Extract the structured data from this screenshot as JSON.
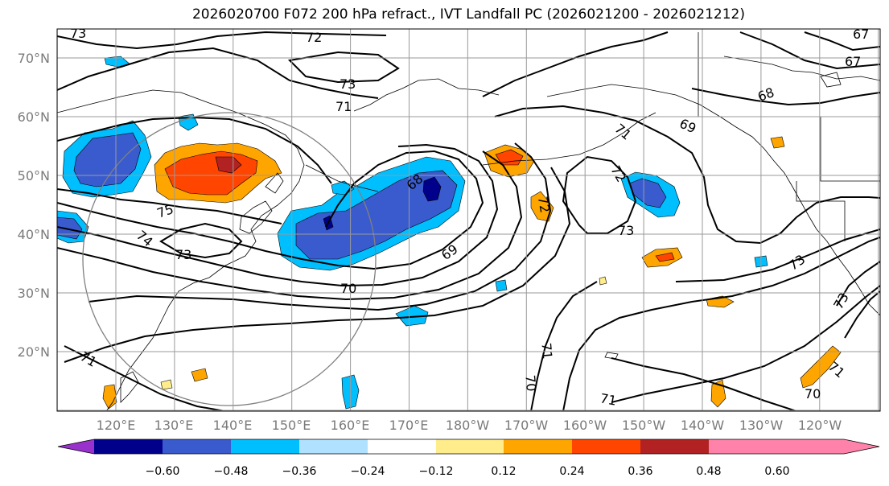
{
  "title": "2026020700 F072 200 hPa refract., IVT Landfall PC (2026021200 - 2026021212)",
  "latitude_labels": [
    "70°N",
    "60°N",
    "50°N",
    "40°N",
    "30°N",
    "20°N"
  ],
  "longitude_labels": [
    "120°E",
    "130°E",
    "140°E",
    "150°E",
    "160°E",
    "170°E",
    "180°W",
    "170°W",
    "160°W",
    "150°W",
    "140°W",
    "130°W",
    "120°W"
  ],
  "colorbar": {
    "colors": [
      "#9932cc",
      "#00008b",
      "#3a5bcd",
      "#00bfff",
      "#b0e2ff",
      "#ffffff",
      "#ffec8b",
      "#ffa500",
      "#ff4500",
      "#b22222",
      "#ff82ab"
    ],
    "tick_labels": [
      "−0.60",
      "−0.48",
      "−0.36",
      "−0.24",
      "−0.12",
      "0.12",
      "0.24",
      "0.36",
      "0.48",
      "0.60"
    ]
  },
  "contour_labels": [
    "73",
    "72",
    "73",
    "71",
    "68",
    "69",
    "67",
    "72",
    "68",
    "71",
    "69",
    "73",
    "72",
    "73",
    "73",
    "70",
    "71",
    "70",
    "71",
    "71",
    "70",
    "71",
    "73",
    "75",
    "74",
    "67"
  ]
}
